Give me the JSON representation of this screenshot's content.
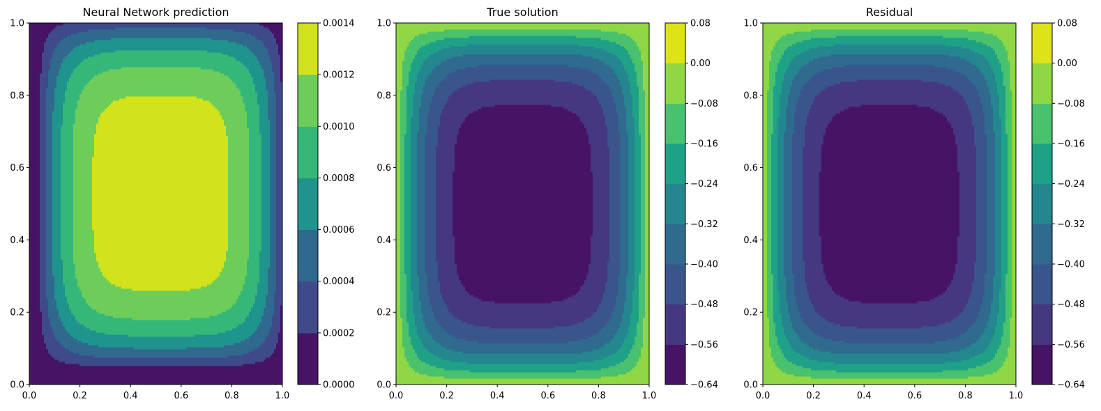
{
  "chart_data": [
    {
      "type": "contour",
      "title": "Neural Network prediction",
      "xlim": [
        0.0,
        1.0
      ],
      "ylim": [
        0.0,
        1.0
      ],
      "x_ticks": [
        "0.0",
        "0.2",
        "0.4",
        "0.6",
        "0.8",
        "1.0"
      ],
      "y_ticks": [
        "0.0",
        "0.2",
        "0.4",
        "0.6",
        "0.8",
        "1.0"
      ],
      "grid": false,
      "field": {
        "center": [
          0.52,
          0.53
        ],
        "vmin": 0.0,
        "vmax": 0.00131,
        "sign": 1
      },
      "colorbar": {
        "levels": [
          0.0,
          0.0002,
          0.0004,
          0.0006,
          0.0008,
          0.001,
          0.0012,
          0.0014
        ],
        "tick_labels": [
          "0.0000",
          "0.0002",
          "0.0004",
          "0.0006",
          "0.0008",
          "0.0010",
          "0.0012",
          "0.0014"
        ],
        "colors": [
          "#471365",
          "#3e4a89",
          "#30688e",
          "#1f948c",
          "#35b779",
          "#6ccd5a",
          "#d2e21b"
        ]
      }
    },
    {
      "type": "contour",
      "title": "True solution",
      "xlim": [
        0.0,
        1.0
      ],
      "ylim": [
        0.0,
        1.0
      ],
      "x_ticks": [
        "0.0",
        "0.2",
        "0.4",
        "0.6",
        "0.8",
        "1.0"
      ],
      "y_ticks": [
        "0.0",
        "0.2",
        "0.4",
        "0.6",
        "0.8",
        "1.0"
      ],
      "grid": false,
      "field": {
        "center": [
          0.5,
          0.5
        ],
        "vmin": -0.615,
        "vmax": 0.0,
        "sign": -1
      },
      "colorbar": {
        "levels": [
          -0.64,
          -0.56,
          -0.48,
          -0.4,
          -0.32,
          -0.24,
          -0.16,
          -0.08,
          0.0,
          0.08
        ],
        "tick_labels": [
          "−0.64",
          "−0.56",
          "−0.48",
          "−0.40",
          "−0.32",
          "−0.24",
          "−0.16",
          "−0.08",
          "0.00",
          "0.08"
        ],
        "colors": [
          "#471365",
          "#453781",
          "#3a548c",
          "#306a8e",
          "#24868e",
          "#1fa188",
          "#4ac16d",
          "#8fd744",
          "#dde318"
        ]
      }
    },
    {
      "type": "contour",
      "title": "Residual",
      "xlim": [
        0.0,
        1.0
      ],
      "ylim": [
        0.0,
        1.0
      ],
      "x_ticks": [
        "0.0",
        "0.2",
        "0.4",
        "0.6",
        "0.8",
        "1.0"
      ],
      "y_ticks": [
        "0.0",
        "0.2",
        "0.4",
        "0.6",
        "0.8",
        "1.0"
      ],
      "grid": false,
      "field": {
        "center": [
          0.5,
          0.5
        ],
        "vmin": -0.615,
        "vmax": 0.0,
        "sign": -1
      },
      "colorbar": {
        "levels": [
          -0.64,
          -0.56,
          -0.48,
          -0.4,
          -0.32,
          -0.24,
          -0.16,
          -0.08,
          0.0,
          0.08
        ],
        "tick_labels": [
          "−0.64",
          "−0.56",
          "−0.48",
          "−0.40",
          "−0.32",
          "−0.24",
          "−0.16",
          "−0.08",
          "0.00",
          "0.08"
        ],
        "colors": [
          "#471365",
          "#453781",
          "#3a548c",
          "#306a8e",
          "#24868e",
          "#1fa188",
          "#4ac16d",
          "#8fd744",
          "#dde318"
        ]
      }
    }
  ]
}
